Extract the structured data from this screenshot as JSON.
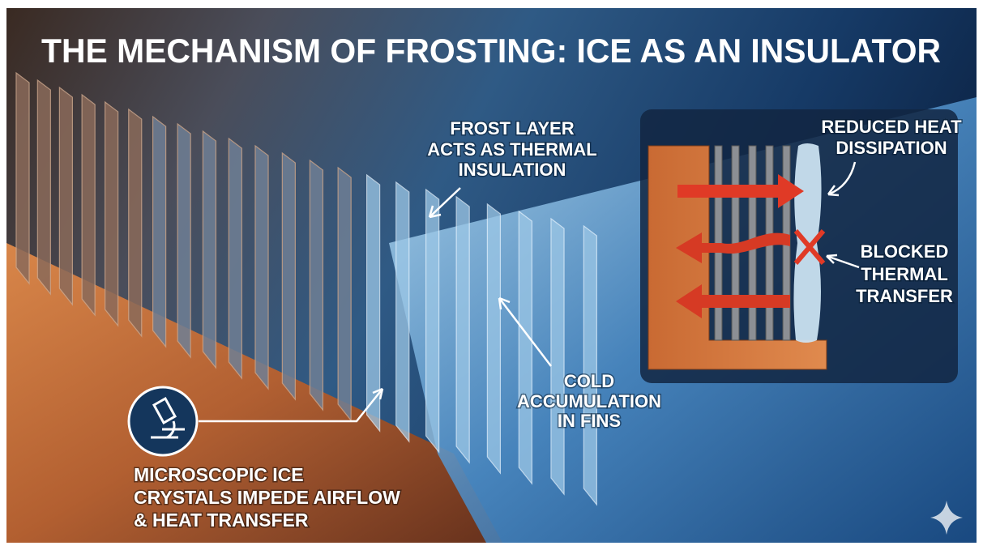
{
  "title": "THE MECHANISM OF FROSTING: ICE AS AN INSULATOR",
  "annotations": {
    "frost_layer": [
      "FROST LAYER",
      "ACTS AS THERMAL",
      "INSULATION"
    ],
    "cold_accumulation": [
      "COLD",
      "ACCUMULATION",
      "IN FINS"
    ],
    "microscopic_crystals": [
      "MICROSCOPIC ICE",
      "CRYSTALS IMPEDE AIRFLOW",
      "& HEAT TRANSFER"
    ]
  },
  "inset": {
    "reduced_heat": [
      "REDUCED HEAT",
      "DISSIPATION"
    ],
    "blocked_transfer": [
      "BLOCKED",
      "THERMAL",
      "TRANSFER"
    ]
  }
}
